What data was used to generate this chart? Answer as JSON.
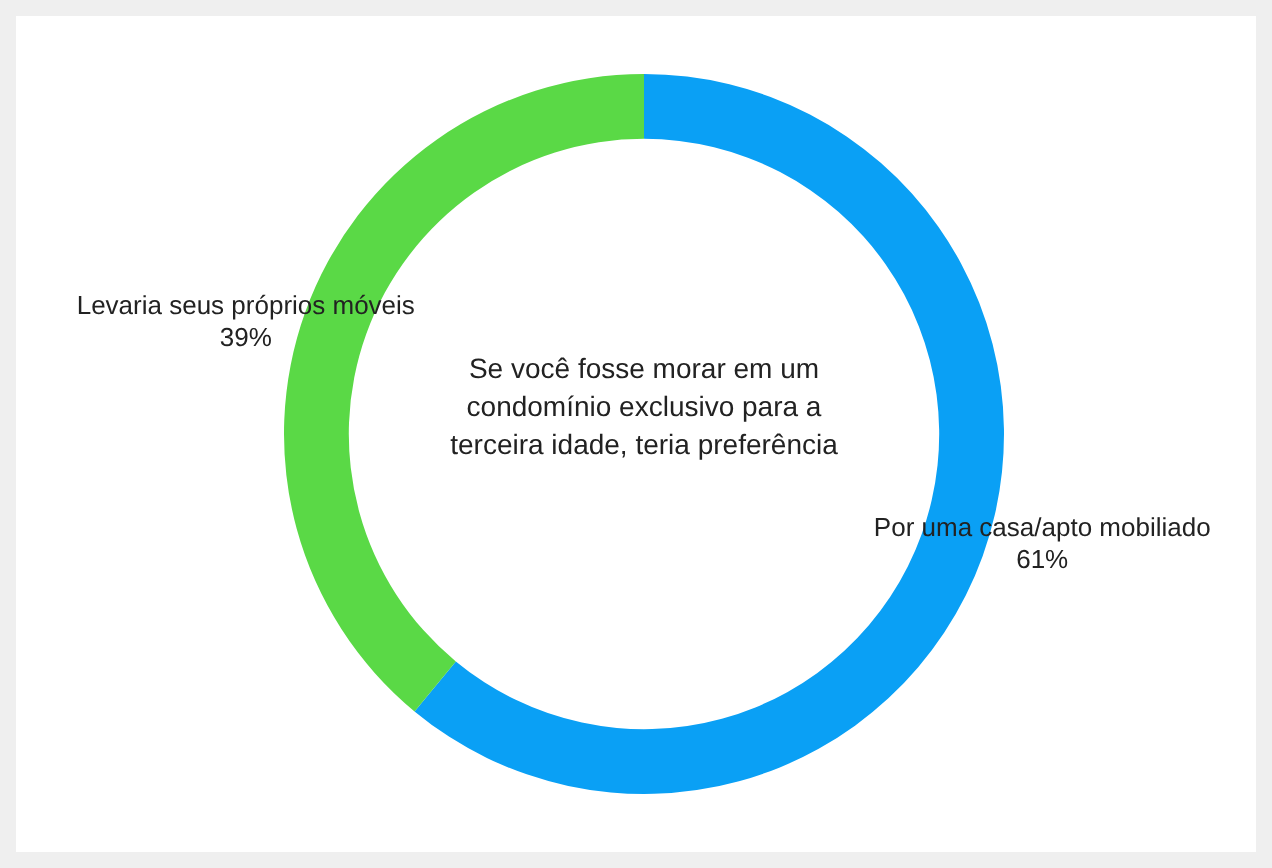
{
  "chart_data": {
    "type": "donut",
    "title": "Se você fosse morar em um condomínio exclusivo para a terceira idade, teria preferência",
    "categories": [
      "Por uma casa/apto mobiliado",
      "Levaria seus próprios móveis"
    ],
    "values": [
      61,
      39
    ],
    "colors": [
      "#0aa0f5",
      "#5ad946"
    ],
    "value_labels": [
      "61%",
      "39%"
    ],
    "legend": false
  }
}
